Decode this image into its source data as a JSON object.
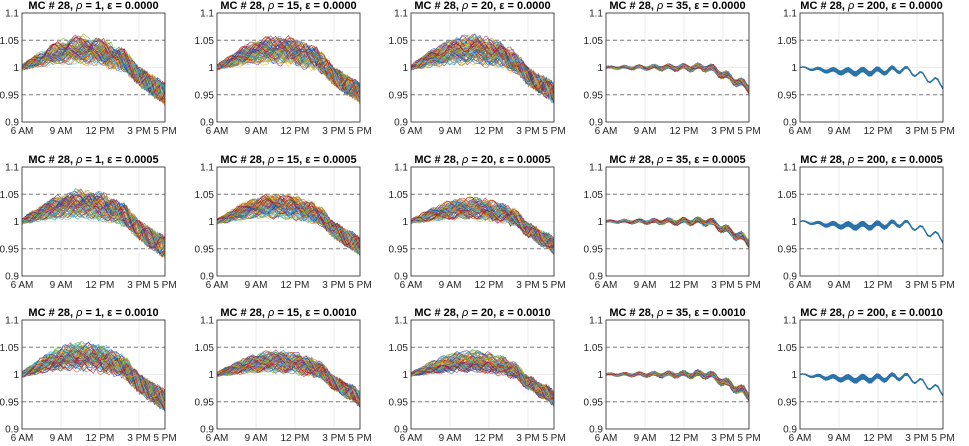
{
  "chart_data": [
    {
      "type": "line",
      "title": "MC # 28, ρ = 1, ε  = 0.0000",
      "title_parts": {
        "mc": "MC # 28, ",
        "rho": "ρ",
        "rest": " = 1, ε  = 0.0000"
      },
      "x_tick_labels": [
        "6 AM",
        "9 AM",
        "12 PM",
        "3 PM",
        "5 PM"
      ],
      "y_tick_labels": [
        "0.9",
        "0.95",
        "1",
        "1.05",
        "1.1"
      ],
      "ylim": [
        0.9,
        1.1
      ],
      "dashed_reference_lines": [
        0.95,
        1.05
      ],
      "grid": "on",
      "series_style": "many Monte Carlo trajectories, multicolor",
      "spread": 1.0,
      "drift": 0.04
    },
    {
      "type": "line",
      "title": "MC # 28, ρ = 15, ε  = 0.0000",
      "title_parts": {
        "mc": "MC # 28, ",
        "rho": "ρ",
        "rest": " = 15, ε  = 0.0000"
      },
      "x_tick_labels": [
        "6 AM",
        "9 AM",
        "12 PM",
        "3 PM",
        "5 PM"
      ],
      "y_tick_labels": [
        "0.9",
        "0.95",
        "1",
        "1.05",
        "1.1"
      ],
      "ylim": [
        0.9,
        1.1
      ],
      "dashed_reference_lines": [
        0.95,
        1.05
      ],
      "grid": "on",
      "series_style": "many Monte Carlo trajectories, multicolor",
      "spread": 0.95,
      "drift": 0.04
    },
    {
      "type": "line",
      "title": "MC # 28, ρ = 20, ε  = 0.0000",
      "title_parts": {
        "mc": "MC # 28, ",
        "rho": "ρ",
        "rest": " = 20, ε  = 0.0000"
      },
      "x_tick_labels": [
        "6 AM",
        "9 AM",
        "12 PM",
        "3 PM",
        "5 PM"
      ],
      "y_tick_labels": [
        "0.9",
        "0.95",
        "1",
        "1.05",
        "1.1"
      ],
      "ylim": [
        0.9,
        1.1
      ],
      "dashed_reference_lines": [
        0.95,
        1.05
      ],
      "grid": "on",
      "series_style": "many Monte Carlo trajectories, multicolor",
      "spread": 0.95,
      "drift": 0.04
    },
    {
      "type": "line",
      "title": "MC # 28, ρ = 35, ε  = 0.0000",
      "title_parts": {
        "mc": "MC # 28, ",
        "rho": "ρ",
        "rest": " = 35, ε  = 0.0000"
      },
      "x_tick_labels": [
        "6 AM",
        "9 AM",
        "12 PM",
        "3 PM",
        "5 PM"
      ],
      "y_tick_labels": [
        "0.9",
        "0.95",
        "1",
        "1.05",
        "1.1"
      ],
      "ylim": [
        0.9,
        1.1
      ],
      "dashed_reference_lines": [
        0.95,
        1.05
      ],
      "grid": "on",
      "series_style": "many Monte Carlo trajectories, multicolor",
      "spread": 0.35,
      "drift": 0.0
    },
    {
      "type": "line",
      "title": "MC # 28, ρ = 200, ε  = 0.0000",
      "title_parts": {
        "mc": "MC # 28, ",
        "rho": "ρ",
        "rest": " = 200, ε  = 0.0000"
      },
      "x_tick_labels": [
        "6 AM",
        "9 AM",
        "12 PM",
        "3 PM",
        "5 PM"
      ],
      "y_tick_labels": [
        "0.9",
        "0.95",
        "1",
        "1.05",
        "1.1"
      ],
      "ylim": [
        0.9,
        1.1
      ],
      "dashed_reference_lines": [
        0.95,
        1.05
      ],
      "grid": "on",
      "series_style": "many Monte Carlo trajectories, multicolor",
      "spread": 0.05,
      "drift": -0.01
    },
    {
      "type": "line",
      "title": "MC # 28, ρ = 1, ε  = 0.0005",
      "title_parts": {
        "mc": "MC # 28, ",
        "rho": "ρ",
        "rest": " = 1, ε  = 0.0005"
      },
      "x_tick_labels": [
        "6 AM",
        "9 AM",
        "12 PM",
        "3 PM",
        "5 PM"
      ],
      "y_tick_labels": [
        "0.9",
        "0.95",
        "1",
        "1.05",
        "1.1"
      ],
      "ylim": [
        0.9,
        1.1
      ],
      "dashed_reference_lines": [
        0.95,
        1.05
      ],
      "grid": "on",
      "series_style": "many Monte Carlo trajectories, multicolor",
      "spread": 1.0,
      "drift": 0.04
    },
    {
      "type": "line",
      "title": "MC # 28, ρ = 15, ε  = 0.0005",
      "title_parts": {
        "mc": "MC # 28, ",
        "rho": "ρ",
        "rest": " = 15, ε  = 0.0005"
      },
      "x_tick_labels": [
        "6 AM",
        "9 AM",
        "12 PM",
        "3 PM",
        "5 PM"
      ],
      "y_tick_labels": [
        "0.9",
        "0.95",
        "1",
        "1.05",
        "1.1"
      ],
      "ylim": [
        0.9,
        1.1
      ],
      "dashed_reference_lines": [
        0.95,
        1.05
      ],
      "grid": "on",
      "series_style": "many Monte Carlo trajectories, multicolor",
      "spread": 0.85,
      "drift": 0.035
    },
    {
      "type": "line",
      "title": "MC # 28, ρ = 20, ε  = 0.0005",
      "title_parts": {
        "mc": "MC # 28, ",
        "rho": "ρ",
        "rest": " = 20, ε  = 0.0005"
      },
      "x_tick_labels": [
        "6 AM",
        "9 AM",
        "12 PM",
        "3 PM",
        "5 PM"
      ],
      "y_tick_labels": [
        "0.9",
        "0.95",
        "1",
        "1.05",
        "1.1"
      ],
      "ylim": [
        0.9,
        1.1
      ],
      "dashed_reference_lines": [
        0.95,
        1.05
      ],
      "grid": "on",
      "series_style": "many Monte Carlo trajectories, multicolor",
      "spread": 0.75,
      "drift": 0.03
    },
    {
      "type": "line",
      "title": "MC # 28, ρ = 35, ε  = 0.0005",
      "title_parts": {
        "mc": "MC # 28, ",
        "rho": "ρ",
        "rest": " = 35, ε  = 0.0005"
      },
      "x_tick_labels": [
        "6 AM",
        "9 AM",
        "12 PM",
        "3 PM",
        "5 PM"
      ],
      "y_tick_labels": [
        "0.9",
        "0.95",
        "1",
        "1.05",
        "1.1"
      ],
      "ylim": [
        0.9,
        1.1
      ],
      "dashed_reference_lines": [
        0.95,
        1.05
      ],
      "grid": "on",
      "series_style": "many Monte Carlo trajectories, multicolor",
      "spread": 0.35,
      "drift": 0.0
    },
    {
      "type": "line",
      "title": "MC # 28, ρ = 200, ε  = 0.0005",
      "title_parts": {
        "mc": "MC # 28, ",
        "rho": "ρ",
        "rest": " = 200, ε  = 0.0005"
      },
      "x_tick_labels": [
        "6 AM",
        "9 AM",
        "12 PM",
        "3 PM",
        "5 PM"
      ],
      "y_tick_labels": [
        "0.9",
        "0.95",
        "1",
        "1.05",
        "1.1"
      ],
      "ylim": [
        0.9,
        1.1
      ],
      "dashed_reference_lines": [
        0.95,
        1.05
      ],
      "grid": "on",
      "series_style": "many Monte Carlo trajectories, multicolor",
      "spread": 0.05,
      "drift": -0.01
    },
    {
      "type": "line",
      "title": "MC # 28, ρ = 1, ε  = 0.0010",
      "title_parts": {
        "mc": "MC # 28, ",
        "rho": "ρ",
        "rest": " = 1, ε  = 0.0010"
      },
      "x_tick_labels": [
        "6 AM",
        "9 AM",
        "12 PM",
        "3 PM",
        "5 PM"
      ],
      "y_tick_labels": [
        "0.9",
        "0.95",
        "1",
        "1.05",
        "1.1"
      ],
      "ylim": [
        0.9,
        1.1
      ],
      "dashed_reference_lines": [
        0.95,
        1.05
      ],
      "grid": "on",
      "series_style": "many Monte Carlo trajectories, multicolor",
      "spread": 1.0,
      "drift": 0.04
    },
    {
      "type": "line",
      "title": "MC # 28, ρ = 15, ε  = 0.0010",
      "title_parts": {
        "mc": "MC # 28, ",
        "rho": "ρ",
        "rest": " = 15, ε  = 0.0010"
      },
      "x_tick_labels": [
        "6 AM",
        "9 AM",
        "12 PM",
        "3 PM",
        "5 PM"
      ],
      "y_tick_labels": [
        "0.9",
        "0.95",
        "1",
        "1.05",
        "1.1"
      ],
      "ylim": [
        0.9,
        1.1
      ],
      "dashed_reference_lines": [
        0.95,
        1.05
      ],
      "grid": "on",
      "series_style": "many Monte Carlo trajectories, multicolor",
      "spread": 0.75,
      "drift": 0.03
    },
    {
      "type": "line",
      "title": "MC # 28, ρ = 20, ε  = 0.0010",
      "title_parts": {
        "mc": "MC # 28, ",
        "rho": "ρ",
        "rest": " = 20, ε  = 0.0010"
      },
      "x_tick_labels": [
        "6 AM",
        "9 AM",
        "12 PM",
        "3 PM",
        "5 PM"
      ],
      "y_tick_labels": [
        "0.9",
        "0.95",
        "1",
        "1.05",
        "1.1"
      ],
      "ylim": [
        0.9,
        1.1
      ],
      "dashed_reference_lines": [
        0.95,
        1.05
      ],
      "grid": "on",
      "series_style": "many Monte Carlo trajectories, multicolor",
      "spread": 0.7,
      "drift": 0.03
    },
    {
      "type": "line",
      "title": "MC # 28, ρ = 35, ε  = 0.0010",
      "title_parts": {
        "mc": "MC # 28, ",
        "rho": "ρ",
        "rest": " = 35, ε  = 0.0010"
      },
      "x_tick_labels": [
        "6 AM",
        "9 AM",
        "12 PM",
        "3 PM",
        "5 PM"
      ],
      "y_tick_labels": [
        "0.9",
        "0.95",
        "1",
        "1.05",
        "1.1"
      ],
      "ylim": [
        0.9,
        1.1
      ],
      "dashed_reference_lines": [
        0.95,
        1.05
      ],
      "grid": "on",
      "series_style": "many Monte Carlo trajectories, multicolor",
      "spread": 0.35,
      "drift": 0.0
    },
    {
      "type": "line",
      "title": "MC # 28, ρ = 200, ε  = 0.0010",
      "title_parts": {
        "mc": "MC # 28, ",
        "rho": "ρ",
        "rest": " = 200, ε  = 0.0010"
      },
      "x_tick_labels": [
        "6 AM",
        "9 AM",
        "12 PM",
        "3 PM",
        "5 PM"
      ],
      "y_tick_labels": [
        "0.9",
        "0.95",
        "1",
        "1.05",
        "1.1"
      ],
      "ylim": [
        0.9,
        1.1
      ],
      "dashed_reference_lines": [
        0.95,
        1.05
      ],
      "grid": "on",
      "series_style": "many Monte Carlo trajectories, multicolor",
      "spread": 0.05,
      "drift": -0.01
    }
  ],
  "colors": {
    "axis": "#262626",
    "grid": "#e6e6e6",
    "dashed_reference": "#7f7f7f",
    "series_palette": [
      "#0072BD",
      "#D95319",
      "#EDB120",
      "#7E2F8E",
      "#77AC30",
      "#4DBEEE",
      "#A2142F"
    ],
    "dominant_series": "#2a6fb0"
  }
}
